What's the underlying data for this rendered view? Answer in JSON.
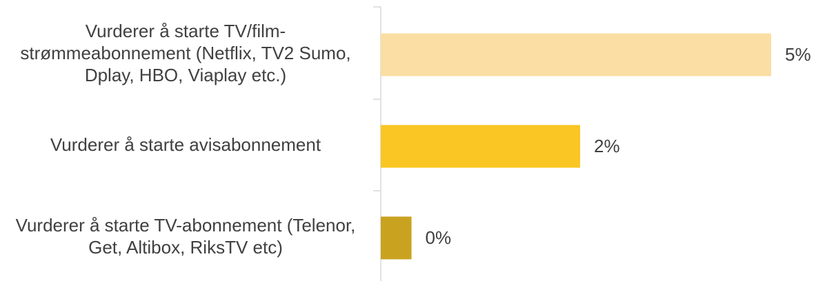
{
  "chart_data": {
    "type": "bar",
    "orientation": "horizontal",
    "categories": [
      "Vurderer å starte TV/film-strømmeabonnement (Netflix, TV2 Sumo, Dplay, HBO, Viaplay etc.)",
      "Vurderer å starte avisabonnement",
      "Vurderer å starte TV-abonnement (Telenor, Get, Altibox, RiksTV etc)"
    ],
    "values": [
      4.7,
      2.4,
      0.37
    ],
    "value_labels": [
      "5%",
      "2%",
      "0%"
    ],
    "colors": [
      "#fbdea3",
      "#f9c623",
      "#c9a220"
    ]
  }
}
